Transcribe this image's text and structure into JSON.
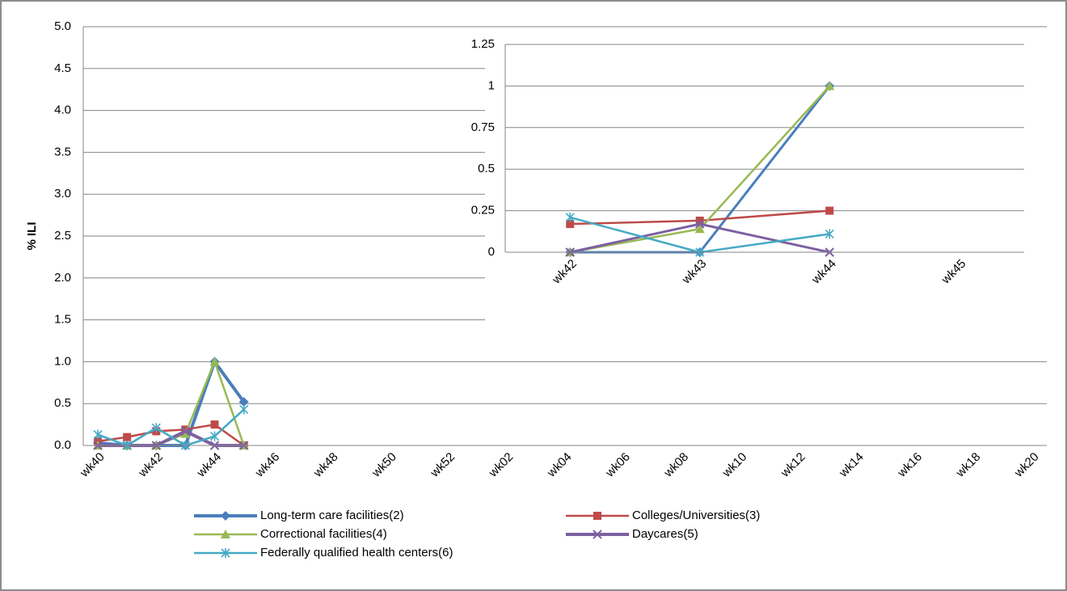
{
  "chart_data": [
    {
      "type": "line",
      "y_label": "% ILI",
      "categories": [
        "wk40",
        null,
        "wk42",
        null,
        "wk44",
        null,
        "wk46",
        null,
        "wk48",
        null,
        "wk50",
        null,
        "wk52",
        null,
        "wk02",
        null,
        "wk04",
        null,
        "wk06",
        null,
        "wk08",
        null,
        "wk10",
        null,
        "wk12",
        null,
        "wk14",
        null,
        "wk16",
        null,
        "wk18",
        null,
        "wk20"
      ],
      "ylim": [
        0,
        5
      ],
      "yticks": [
        {
          "value": 0,
          "label": "0.0"
        },
        {
          "value": 0.5,
          "label": "0.5"
        },
        {
          "value": 1,
          "label": "1.0"
        },
        {
          "value": 1.5,
          "label": "1.5"
        },
        {
          "value": 2,
          "label": "2.0"
        },
        {
          "value": 2.5,
          "label": "2.5"
        },
        {
          "value": 3,
          "label": "3.0"
        },
        {
          "value": 3.5,
          "label": "3.5"
        },
        {
          "value": 4,
          "label": "4.0"
        },
        {
          "value": 4.5,
          "label": "4.5"
        },
        {
          "value": 5,
          "label": "5.0"
        }
      ],
      "grid": true,
      "legend": "bottom",
      "series": [
        {
          "name": "Long-term care facilities(2)",
          "color": "#4a7ebb",
          "marker": "diamond",
          "values": [
            0.03,
            0,
            0,
            0,
            1.0,
            0.52,
            null,
            null,
            null,
            null,
            null,
            null,
            null,
            null,
            null,
            null,
            null,
            null,
            null,
            null,
            null,
            null,
            null,
            null,
            null,
            null,
            null,
            null,
            null,
            null,
            null,
            null,
            null
          ]
        },
        {
          "name": "Colleges/Universities(3)",
          "color": "#be4b48",
          "marker": "square",
          "values": [
            0.05,
            0.1,
            0.17,
            0.19,
            0.25,
            0,
            null,
            null,
            null,
            null,
            null,
            null,
            null,
            null,
            null,
            null,
            null,
            null,
            null,
            null,
            null,
            null,
            null,
            null,
            null,
            null,
            null,
            null,
            null,
            null,
            null,
            null,
            null
          ]
        },
        {
          "name": "Correctional facilities(4)",
          "color": "#98b954",
          "marker": "triangle",
          "values": [
            0,
            0,
            0,
            0.14,
            1.0,
            0,
            null,
            null,
            null,
            null,
            null,
            null,
            null,
            null,
            null,
            null,
            null,
            null,
            null,
            null,
            null,
            null,
            null,
            null,
            null,
            null,
            null,
            null,
            null,
            null,
            null,
            null,
            null
          ]
        },
        {
          "name": "Daycares(5)",
          "color": "#7d60a0",
          "marker": "x",
          "values": [
            0,
            0,
            0,
            0.17,
            0,
            0,
            null,
            null,
            null,
            null,
            null,
            null,
            null,
            null,
            null,
            null,
            null,
            null,
            null,
            null,
            null,
            null,
            null,
            null,
            null,
            null,
            null,
            null,
            null,
            null,
            null,
            null,
            null
          ]
        },
        {
          "name": "Federally qualified health centers(6)",
          "color": "#46aac5",
          "marker": "star",
          "values": [
            0.13,
            0,
            0.21,
            0,
            0.11,
            0.43,
            null,
            null,
            null,
            null,
            null,
            null,
            null,
            null,
            null,
            null,
            null,
            null,
            null,
            null,
            null,
            null,
            null,
            null,
            null,
            null,
            null,
            null,
            null,
            null,
            null,
            null,
            null
          ]
        }
      ]
    },
    {
      "type": "line",
      "categories": [
        "wk42",
        "wk43",
        "wk44",
        "wk45"
      ],
      "ylim": [
        0,
        1.25
      ],
      "yticks": [
        0,
        0.25,
        0.5,
        0.75,
        1,
        1.25
      ],
      "grid": true,
      "series": [
        {
          "color": "#4a7ebb",
          "marker": "diamond",
          "values": [
            0,
            0,
            1,
            null
          ]
        },
        {
          "color": "#be4b48",
          "marker": "square",
          "values": [
            0.17,
            0.19,
            0.25,
            null
          ]
        },
        {
          "color": "#98b954",
          "marker": "triangle",
          "values": [
            0,
            0.14,
            1,
            null
          ]
        },
        {
          "color": "#7d60a0",
          "marker": "x",
          "values": [
            0,
            0.17,
            0,
            null
          ]
        },
        {
          "color": "#46aac5",
          "marker": "star",
          "values": [
            0.21,
            0,
            0.11,
            null
          ]
        }
      ]
    }
  ]
}
